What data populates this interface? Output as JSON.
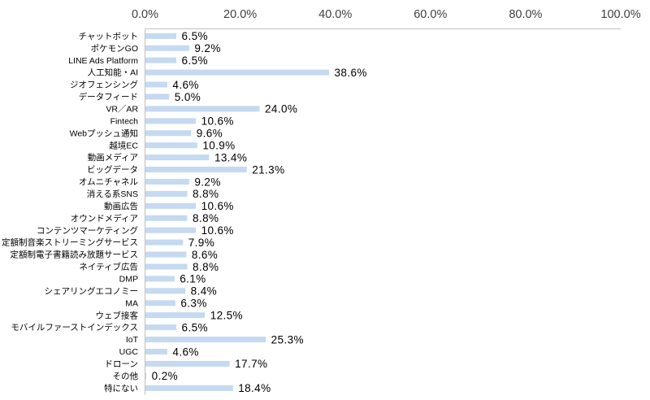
{
  "chart_data": {
    "type": "bar",
    "orientation": "horizontal",
    "categories": [
      "チャットボット",
      "ポケモンGO",
      "LINE Ads Platform",
      "人工知能・AI",
      "ジオフェンシング",
      "データフィード",
      "VR／AR",
      "Fintech",
      "Webプッシュ通知",
      "越境EC",
      "動画メディア",
      "ビッグデータ",
      "オムニチャネル",
      "消える系SNS",
      "動画広告",
      "オウンドメディア",
      "コンテンツマーケティング",
      "定額制音楽ストリーミングサービス",
      "定額制電子書籍読み放題サービス",
      "ネイティブ広告",
      "DMP",
      "シェアリングエコノミー",
      "MA",
      "ウェブ接客",
      "モバイルファーストインデックス",
      "IoT",
      "UGC",
      "ドローン",
      "その他",
      "特にない"
    ],
    "values": [
      6.5,
      9.2,
      6.5,
      38.6,
      4.6,
      5.0,
      24.0,
      10.6,
      9.6,
      10.9,
      13.4,
      21.3,
      9.2,
      8.8,
      10.6,
      8.8,
      10.6,
      7.9,
      8.6,
      8.8,
      6.1,
      8.4,
      6.3,
      12.5,
      6.5,
      25.3,
      4.6,
      17.7,
      0.2,
      18.4
    ],
    "value_labels": [
      "6.5%",
      "9.2%",
      "6.5%",
      "38.6%",
      "4.6%",
      "5.0%",
      "24.0%",
      "10.6%",
      "9.6%",
      "10.9%",
      "13.4%",
      "21.3%",
      "9.2%",
      "8.8%",
      "10.6%",
      "8.8%",
      "10.6%",
      "7.9%",
      "8.6%",
      "8.8%",
      "6.1%",
      "8.4%",
      "6.3%",
      "12.5%",
      "6.5%",
      "25.3%",
      "4.6%",
      "17.7%",
      "0.2%",
      "18.4%"
    ],
    "xlim": [
      0,
      100
    ],
    "xticks": [
      0,
      20,
      40,
      60,
      80,
      100
    ],
    "xtick_labels": [
      "0.0%",
      "20.0%",
      "40.0%",
      "60.0%",
      "80.0%",
      "100.0%"
    ],
    "x_axis_position": "top",
    "grid": false,
    "legend": "none",
    "colors": {
      "bar": "#c5d9f1",
      "label_text": "#000000",
      "axis_text": "#404040",
      "axis_line": "#bfbfbf"
    }
  }
}
